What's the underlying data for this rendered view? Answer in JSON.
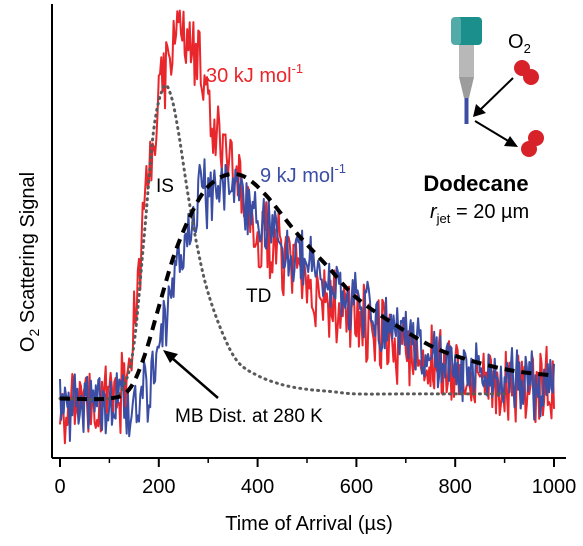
{
  "chart_data": {
    "type": "line",
    "xlabel": "Time of Arrival (µs)",
    "ylabel_main": "O",
    "ylabel_sub": "2",
    "ylabel_rest": " Scattering Signal",
    "xlim": [
      0,
      1000
    ],
    "ylim": [
      0,
      1.0
    ],
    "x_ticks": [
      0,
      200,
      400,
      600,
      800,
      1000
    ],
    "grid": false,
    "series": [
      {
        "name": "30 kJ mol-1",
        "color": "#e8262b",
        "envelope": {
          "x": [
            0,
            100,
            130,
            150,
            170,
            200,
            230,
            260,
            280,
            310,
            340,
            380,
            420,
            470,
            520,
            580,
            640,
            700,
            760,
            820,
            880,
            940,
            1000
          ],
          "y": [
            0.12,
            0.12,
            0.16,
            0.3,
            0.5,
            0.78,
            0.92,
            0.93,
            0.86,
            0.74,
            0.64,
            0.54,
            0.47,
            0.42,
            0.37,
            0.31,
            0.27,
            0.24,
            0.21,
            0.19,
            0.17,
            0.16,
            0.15
          ]
        }
      },
      {
        "name": "9 kJ mol-1",
        "color": "#3b4ea3",
        "envelope": {
          "x": [
            0,
            100,
            150,
            180,
            200,
            230,
            260,
            290,
            330,
            370,
            400,
            440,
            500,
            560,
            620,
            700,
            780,
            860,
            940,
            1000
          ],
          "y": [
            0.12,
            0.12,
            0.12,
            0.16,
            0.25,
            0.38,
            0.52,
            0.58,
            0.6,
            0.58,
            0.53,
            0.47,
            0.42,
            0.37,
            0.31,
            0.26,
            0.21,
            0.18,
            0.16,
            0.15
          ]
        }
      },
      {
        "name": "IS",
        "color": "#5a5a5a",
        "style": "dotted",
        "x": [
          0,
          100,
          130,
          150,
          170,
          190,
          210,
          225,
          240,
          260,
          280,
          300,
          330,
          360,
          400,
          450,
          500,
          550,
          600,
          700,
          800,
          900
        ],
        "y": [
          0.13,
          0.13,
          0.16,
          0.25,
          0.48,
          0.72,
          0.81,
          0.79,
          0.71,
          0.57,
          0.45,
          0.36,
          0.27,
          0.21,
          0.18,
          0.16,
          0.15,
          0.145,
          0.14,
          0.14,
          0.14,
          0.14
        ]
      },
      {
        "name": "MB Dist. at 280 K",
        "color": "#000000",
        "style": "dashed",
        "x": [
          0,
          100,
          140,
          170,
          200,
          230,
          260,
          290,
          320,
          350,
          380,
          420,
          480,
          540,
          600,
          680,
          760,
          840,
          920,
          1000
        ],
        "y": [
          0.13,
          0.13,
          0.15,
          0.22,
          0.33,
          0.44,
          0.52,
          0.58,
          0.61,
          0.62,
          0.61,
          0.57,
          0.49,
          0.42,
          0.35,
          0.29,
          0.24,
          0.21,
          0.19,
          0.18
        ]
      }
    ],
    "annotations": {
      "label_30_value": "30 kJ mol",
      "label_30_sup": "-1",
      "label_9_value": "9 kJ mol",
      "label_9_sup": "-1",
      "label_is": "IS",
      "label_td": "TD",
      "label_mb": "MB Dist. at 280 K"
    }
  },
  "inset": {
    "o2_main": "O",
    "o2_sub": "2",
    "liquid": "Dodecane",
    "rjet_r": "r",
    "rjet_sub": "jet",
    "rjet_rest": " = 20 µm",
    "nozzle_color": "#1a8f8c",
    "jet_color": "#3b4ea3",
    "molecule_color": "#d8222a"
  }
}
